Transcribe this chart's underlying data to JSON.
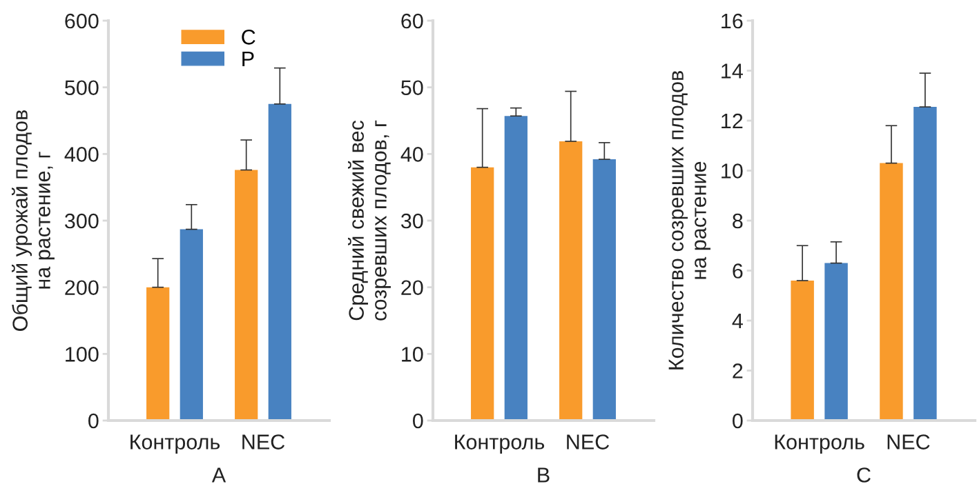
{
  "chart_data": [
    {
      "type": "bar",
      "categories": [
        "Контроль",
        "NEC"
      ],
      "xlabel": "A",
      "ylabel": "Общий урожай плодов\nна растение, г",
      "ylim": [
        0,
        600
      ],
      "yticks": [
        0,
        100,
        200,
        300,
        400,
        500,
        600
      ],
      "legend": "top",
      "grid": false,
      "series": [
        {
          "name": "C",
          "color": "#f99b2c",
          "values": [
            200,
            376
          ],
          "errors": [
            [
              200,
              243
            ],
            [
              376,
              421
            ]
          ]
        },
        {
          "name": "P",
          "color": "#4882c1",
          "values": [
            287,
            475
          ],
          "errors": [
            [
              287,
              324
            ],
            [
              475,
              529
            ]
          ]
        }
      ]
    },
    {
      "type": "bar",
      "categories": [
        "Контроль",
        "NEC"
      ],
      "xlabel": "B",
      "ylabel": "Средний свежий вес\nсозревших плодов, г",
      "ylim": [
        0,
        60
      ],
      "yticks": [
        0,
        10,
        20,
        30,
        40,
        50,
        60
      ],
      "legend": false,
      "grid": false,
      "series": [
        {
          "color": "#f99b2c",
          "values": [
            38.0,
            41.9
          ],
          "errors": [
            [
              38.0,
              46.8
            ],
            [
              41.9,
              49.4
            ]
          ]
        },
        {
          "color": "#4882c1",
          "values": [
            45.7,
            39.2
          ],
          "errors": [
            [
              45.7,
              46.9
            ],
            [
              39.2,
              41.7
            ]
          ]
        }
      ]
    },
    {
      "type": "bar",
      "categories": [
        "Контроль",
        "NEC"
      ],
      "xlabel": "C",
      "ylabel": "Количество созревших плодов\nна растение",
      "ylim": [
        0,
        16
      ],
      "yticks": [
        0,
        2,
        4,
        6,
        8,
        10,
        12,
        14,
        16
      ],
      "legend": false,
      "grid": false,
      "series": [
        {
          "color": "#f99b2c",
          "values": [
            5.6,
            10.3
          ],
          "errors": [
            [
              5.6,
              7.0
            ],
            [
              10.3,
              11.8
            ]
          ]
        },
        {
          "color": "#4882c1",
          "values": [
            6.3,
            12.55
          ],
          "errors": [
            [
              6.3,
              7.15
            ],
            [
              12.55,
              13.9
            ]
          ]
        }
      ]
    }
  ]
}
